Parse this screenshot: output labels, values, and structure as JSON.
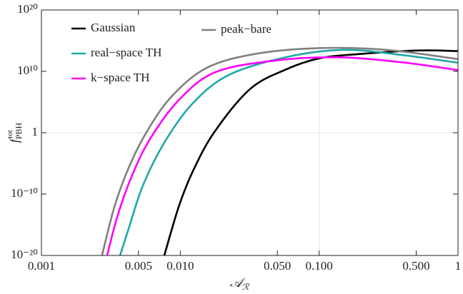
{
  "chart_data": {
    "type": "line",
    "xlabel": {
      "base": "𝒜",
      "sub": "ℛ"
    },
    "ylabel": {
      "base": "f",
      "sub": "PBH",
      "sup": "tot"
    },
    "log_x": true,
    "log_y": true,
    "xlim": [
      0.001,
      1
    ],
    "ylim": [
      1e-20,
      1e+20
    ],
    "xticks": [
      0.001,
      0.005,
      {
        "value": 0.01,
        "label": "0.010"
      },
      {
        "value": 0.05,
        "label": "0.050"
      },
      {
        "value": 0.1,
        "label": "0.100"
      },
      {
        "value": 0.5,
        "label": "0.500"
      },
      1
    ],
    "yticks": [
      {
        "value": 1e-20,
        "label": "10⁻²⁰"
      },
      {
        "value": 1e-10,
        "label": "10⁻¹⁰"
      },
      1,
      {
        "value": 10000000000.0,
        "label": "10¹⁰"
      },
      {
        "value": 1e+20,
        "label": "10²⁰"
      }
    ],
    "grid_x": [
      0.1
    ],
    "grid_y": [
      1
    ],
    "series": [
      {
        "name": "Gaussian",
        "color": "#000000",
        "x": [
          0.00767,
          0.00973,
          0.0123,
          0.0176,
          0.0318,
          0.0575,
          0.1,
          0.188,
          0.504,
          1
        ],
        "values": [
          1e-20,
          7.9e-13,
          5e-07,
          1.3,
          13000000.0,
          20000000000.0,
          1300000000000.0,
          6300000000000.0,
          25000000000000.0,
          20000000000000.0
        ]
      },
      {
        "name": "real−space TH",
        "color": "#1fa8a8",
        "x": [
          0.00368,
          0.00425,
          0.00538,
          0.00767,
          0.0123,
          0.0223,
          0.0575,
          0.149,
          0.384,
          1
        ],
        "values": [
          1e-20,
          2.5e-16,
          2.5e-09,
          0.025,
          63000.0,
          2500000000.0,
          2000000000000.0,
          32000000000000.0,
          5000000000000.0,
          250000000000.0
        ]
      },
      {
        "name": "k−space TH",
        "color": "#ff00ff",
        "x": [
          0.00297,
          0.00356,
          0.00451,
          0.00606,
          0.00973,
          0.0176,
          0.0454,
          0.132,
          0.384,
          1
        ],
        "values": [
          1e-20,
          5e-14,
          1.3e-07,
          0.1,
          200000.0,
          6300000000.0,
          500000000000.0,
          2000000000000.0,
          320000000000.0,
          16000000000.0
        ]
      },
      {
        "name": "peak−bare",
        "color": "#808080",
        "x": [
          0.00273,
          0.00335,
          0.00425,
          0.00572,
          0.00865,
          0.0156,
          0.0358,
          0.104,
          0.303,
          1
        ],
        "values": [
          1e-20,
          7.9e-13,
          2e-06,
          1.3,
          790000.0,
          40000000000.0,
          7900000000000.0,
          63000000000000.0,
          32000000000000.0,
          1000000000000.0
        ]
      }
    ]
  }
}
